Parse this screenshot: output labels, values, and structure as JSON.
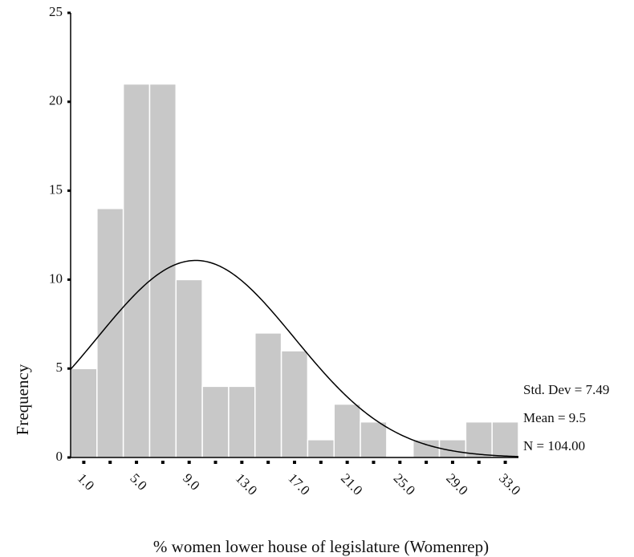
{
  "chart_data": {
    "type": "histogram",
    "bins": [
      0,
      2,
      4,
      6,
      8,
      10,
      12,
      14,
      16,
      18,
      20,
      22,
      24,
      26,
      28,
      30,
      32,
      34
    ],
    "counts": [
      5,
      14,
      21,
      21,
      10,
      4,
      4,
      7,
      6,
      1,
      3,
      2,
      0,
      1,
      1,
      2,
      2
    ],
    "color": "#c8c8c8",
    "xlabel": "% women lower house of legislature (Womenrep)",
    "ylabel": "Frequency",
    "xlim": [
      0,
      34
    ],
    "xticks": [
      {
        "value": 1,
        "label": "1.0"
      },
      {
        "value": 5,
        "label": "5.0"
      },
      {
        "value": 9,
        "label": "9.0"
      },
      {
        "value": 13,
        "label": "13.0"
      },
      {
        "value": 17,
        "label": "17.0"
      },
      {
        "value": 21,
        "label": "21.0"
      },
      {
        "value": 25,
        "label": "25.0"
      },
      {
        "value": 29,
        "label": "29.0"
      },
      {
        "value": 33,
        "label": "33.0"
      }
    ],
    "xminorticks": [
      3,
      7,
      11,
      15,
      19,
      23,
      27,
      31
    ],
    "ylim": [
      0,
      25
    ],
    "yticks": [
      0,
      5,
      10,
      15,
      20,
      25
    ],
    "curve": {
      "mean": 9.5,
      "sd": 7.49,
      "n": 104
    },
    "annotations": [
      "Std. Dev = 7.49",
      "Mean = 9.5",
      "N = 104.00"
    ]
  }
}
